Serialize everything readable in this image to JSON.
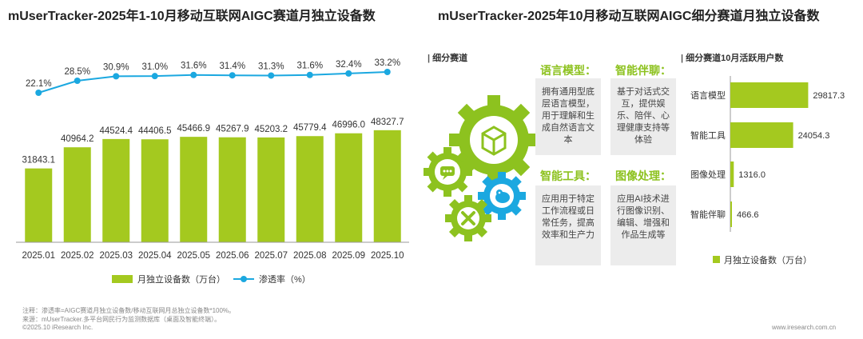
{
  "titles": {
    "left": "mUserTracker-2025年1-10月移动互联网AIGC赛道月独立设备数",
    "right": "mUserTracker-2025年10月移动互联网AIGC细分赛道月独立设备数"
  },
  "colors": {
    "bar": "#a4c91f",
    "line": "#1ba8e0",
    "accent_text": "#8dc21f",
    "box_bg": "#ececec",
    "gear_green": "#8dc21f",
    "gear_blue": "#1ba8e0"
  },
  "chart_data": [
    {
      "type": "bar",
      "categories": [
        "2025.01",
        "2025.02",
        "2025.03",
        "2025.04",
        "2025.05",
        "2025.06",
        "2025.07",
        "2025.08",
        "2025.09",
        "2025.10"
      ],
      "series": [
        {
          "name": "月独立设备数（万台）",
          "type": "bar",
          "values": [
            31843.1,
            40964.2,
            44524.4,
            44406.5,
            45466.9,
            45267.9,
            45203.2,
            45779.4,
            46996.0,
            48327.7
          ],
          "labels": [
            "31843.1",
            "40964.2",
            "44524.4",
            "44406.5",
            "45466.9",
            "45267.9",
            "45203.2",
            "45779.4",
            "46996.0",
            "48327.7"
          ]
        },
        {
          "name": "渗透率（%）",
          "type": "line",
          "values": [
            22.1,
            28.5,
            30.9,
            31.0,
            31.6,
            31.4,
            31.3,
            31.6,
            32.4,
            33.2
          ],
          "labels": [
            "22.1%",
            "28.5%",
            "30.9%",
            "31.0%",
            "31.6%",
            "31.4%",
            "31.3%",
            "31.6%",
            "32.4%",
            "33.2%"
          ]
        }
      ],
      "legend": "bottom"
    },
    {
      "type": "bar",
      "orientation": "horizontal",
      "title": "细分赛道10月活跃用户数",
      "categories": [
        "语言模型",
        "智能工具",
        "图像处理",
        "智能伴聊"
      ],
      "series": [
        {
          "name": "月独立设备数（万台）",
          "values": [
            29817.3,
            24054.3,
            1316.0,
            466.6
          ],
          "labels": [
            "29817.3",
            "24054.3",
            "1316.0",
            "466.6"
          ]
        }
      ],
      "legend": "bottom"
    }
  ],
  "segments": {
    "label": "细分赛道",
    "items": [
      {
        "title": "语言模型：",
        "desc": "拥有通用型底层语言模型，用于理解和生成自然语言文本"
      },
      {
        "title": "智能伴聊：",
        "desc": "基于对话式交互，提供娱乐、陪伴、心理健康支持等体验"
      },
      {
        "title": "智能工具：",
        "desc": "应用用于特定工作流程或日常任务，提高效率和生产力"
      },
      {
        "title": "图像处理：",
        "desc": "应用AI技术进行图像识别、编辑、增强和作品生成等"
      }
    ]
  },
  "footer": {
    "note": "注释：渗透率=AIGC赛道月独立设备数/移动互联网月总独立设备数*100%。",
    "source": "来源：mUserTracker.多平台网民行为监测数据库（桌面及智能终端）。",
    "copyright": "©2025.10 iResearch Inc.",
    "website": "www.iresearch.com.cn"
  }
}
